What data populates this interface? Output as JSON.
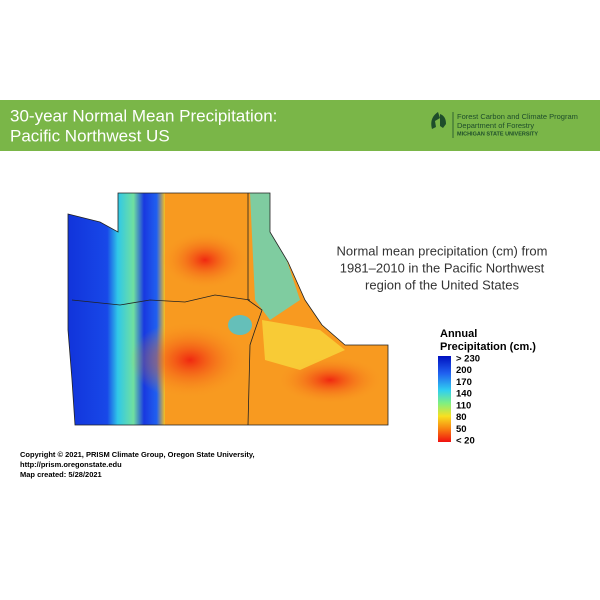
{
  "header": {
    "title": [
      "30-year Normal Mean Precipitation:",
      "Pacific Northwest US"
    ],
    "logo": [
      "Forest Carbon and Climate Program",
      "Department of Forestry",
      "MICHIGAN STATE UNIVERSITY"
    ]
  },
  "description": [
    "Normal mean precipitation (cm) from",
    "1981–2010 in the Pacific Northwest",
    "region of the United States"
  ],
  "legend": {
    "title": [
      "Annual",
      "Precipitation (cm.)"
    ],
    "labels": [
      "> 230",
      "200",
      "170",
      "140",
      "110",
      "80",
      "50",
      "< 20"
    ]
  },
  "credits": [
    "Copyright © 2021, PRISM Climate Group, Oregon State University,",
    "http://prism.oregonstate.edu",
    "Map created: 5/28/2021"
  ]
}
